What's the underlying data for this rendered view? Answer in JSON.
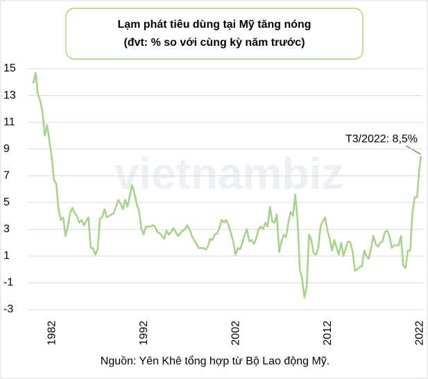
{
  "chart_data": {
    "type": "line",
    "title": "Lạm phát tiêu dùng tại Mỹ tăng nóng",
    "subtitle": "(đvt: % so với cùng kỳ năm trước)",
    "source": "Nguồn: Yên Khê tổng hợp từ Bộ Lao động Mỹ.",
    "watermark": "vietnambiz",
    "annotation": "T3/2022: 8,5%",
    "grid": true,
    "ylim": [
      -3,
      15
    ],
    "yticks": [
      -3,
      -1,
      1,
      3,
      5,
      7,
      9,
      11,
      13,
      15
    ],
    "xlim": [
      1980,
      2022.4
    ],
    "xticks": [
      1982,
      1992,
      2002,
      2012,
      2022
    ],
    "series": [
      {
        "color": "#a9d18e",
        "x": [
          1980.0,
          1980.25,
          1980.5,
          1980.75,
          1981.0,
          1981.25,
          1981.5,
          1981.75,
          1982.0,
          1982.25,
          1982.5,
          1982.75,
          1983.0,
          1983.25,
          1983.5,
          1983.75,
          1984.0,
          1984.25,
          1984.5,
          1984.75,
          1985.0,
          1985.25,
          1985.5,
          1985.75,
          1986.0,
          1986.25,
          1986.5,
          1986.75,
          1987.0,
          1987.25,
          1987.5,
          1987.75,
          1988.0,
          1988.25,
          1988.5,
          1988.75,
          1989.0,
          1989.25,
          1989.5,
          1989.75,
          1990.0,
          1990.25,
          1990.5,
          1990.75,
          1991.0,
          1991.25,
          1991.5,
          1991.75,
          1992.0,
          1992.25,
          1992.5,
          1992.75,
          1993.0,
          1993.25,
          1993.5,
          1993.75,
          1994.0,
          1994.25,
          1994.5,
          1994.75,
          1995.0,
          1995.25,
          1995.5,
          1995.75,
          1996.0,
          1996.25,
          1996.5,
          1996.75,
          1997.0,
          1997.25,
          1997.5,
          1997.75,
          1998.0,
          1998.25,
          1998.5,
          1998.75,
          1999.0,
          1999.25,
          1999.5,
          1999.75,
          2000.0,
          2000.25,
          2000.5,
          2000.75,
          2001.0,
          2001.25,
          2001.5,
          2001.75,
          2002.0,
          2002.25,
          2002.5,
          2002.75,
          2003.0,
          2003.25,
          2003.5,
          2003.75,
          2004.0,
          2004.25,
          2004.5,
          2004.75,
          2005.0,
          2005.25,
          2005.5,
          2005.75,
          2006.0,
          2006.25,
          2006.5,
          2006.75,
          2007.0,
          2007.25,
          2007.5,
          2007.75,
          2008.0,
          2008.25,
          2008.5,
          2008.75,
          2009.0,
          2009.25,
          2009.5,
          2009.75,
          2010.0,
          2010.25,
          2010.5,
          2010.75,
          2011.0,
          2011.25,
          2011.5,
          2011.75,
          2012.0,
          2012.25,
          2012.5,
          2012.75,
          2013.0,
          2013.25,
          2013.5,
          2013.75,
          2014.0,
          2014.25,
          2014.5,
          2014.75,
          2015.0,
          2015.25,
          2015.5,
          2015.75,
          2016.0,
          2016.25,
          2016.5,
          2016.75,
          2017.0,
          2017.25,
          2017.5,
          2017.75,
          2018.0,
          2018.25,
          2018.5,
          2018.75,
          2019.0,
          2019.25,
          2019.5,
          2019.75,
          2020.0,
          2020.25,
          2020.5,
          2020.75,
          2021.0,
          2021.25,
          2021.5,
          2021.75,
          2022.0,
          2022.08,
          2022.17
        ],
        "values": [
          13.9,
          14.7,
          13.1,
          12.6,
          11.8,
          10.0,
          10.8,
          9.6,
          8.4,
          6.7,
          6.4,
          4.5,
          3.7,
          3.9,
          2.5,
          3.2,
          4.2,
          4.6,
          4.2,
          4.0,
          3.5,
          3.7,
          3.3,
          3.6,
          3.9,
          1.6,
          1.6,
          1.1,
          1.5,
          3.8,
          3.9,
          4.5,
          3.9,
          4.0,
          4.1,
          4.2,
          4.7,
          5.2,
          4.9,
          4.5,
          5.2,
          4.7,
          5.5,
          6.3,
          5.7,
          4.9,
          4.4,
          3.1,
          2.6,
          3.2,
          3.2,
          3.2,
          3.3,
          3.2,
          2.8,
          2.7,
          2.5,
          2.3,
          2.9,
          2.6,
          2.8,
          3.1,
          2.8,
          2.5,
          2.7,
          2.9,
          3.0,
          3.3,
          3.0,
          2.5,
          2.2,
          1.9,
          1.6,
          1.6,
          1.6,
          1.5,
          1.7,
          2.3,
          2.2,
          2.6,
          2.7,
          3.1,
          3.7,
          3.5,
          3.7,
          3.3,
          2.7,
          2.1,
          1.1,
          1.6,
          1.5,
          2.0,
          2.6,
          3.0,
          2.1,
          2.2,
          1.9,
          2.3,
          3.0,
          3.2,
          3.0,
          3.5,
          3.2,
          4.7,
          3.6,
          3.5,
          4.1,
          1.3,
          2.1,
          2.6,
          2.4,
          3.5,
          4.3,
          4.0,
          5.6,
          3.7,
          0.0,
          -0.7,
          -2.1,
          -1.3,
          2.6,
          2.2,
          1.2,
          1.1,
          1.6,
          3.2,
          3.6,
          3.9,
          2.9,
          2.3,
          1.4,
          2.2,
          1.6,
          1.1,
          2.0,
          1.0,
          1.6,
          2.1,
          2.0,
          1.3,
          -0.1,
          0.0,
          0.2,
          0.2,
          1.4,
          1.0,
          0.8,
          1.6,
          2.5,
          1.9,
          1.7,
          2.0,
          2.1,
          2.8,
          2.9,
          2.5,
          1.6,
          1.8,
          1.8,
          1.8,
          2.5,
          0.3,
          0.1,
          1.4,
          1.4,
          4.2,
          5.4,
          5.4,
          7.5,
          7.9,
          8.5
        ]
      }
    ]
  }
}
